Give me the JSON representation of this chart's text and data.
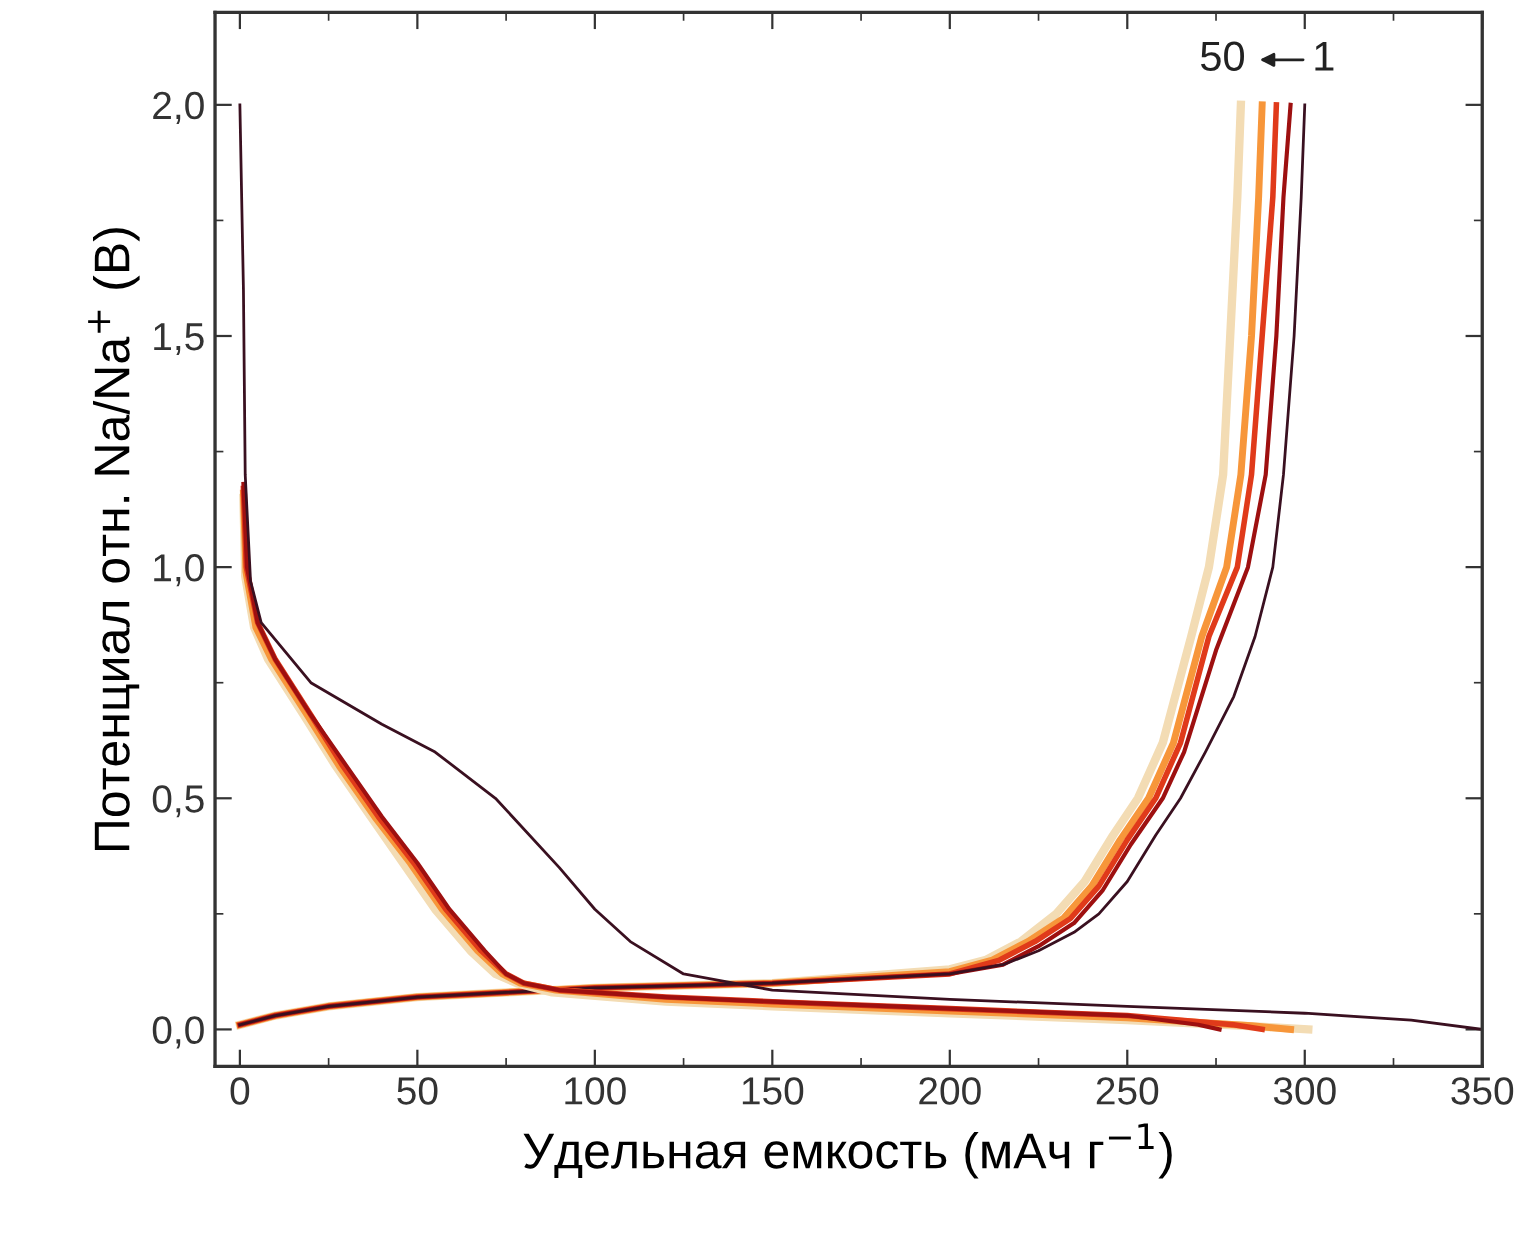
{
  "chart_data": {
    "type": "line",
    "xlabel": "Удельная емкость (мАч г$^{−1}$)",
    "ylabel": "Потенциал отн. Na/Na$^{+}$ (В)",
    "xlim": [
      -7,
      350
    ],
    "ylim": [
      -0.08,
      2.2
    ],
    "xticks": [
      0,
      50,
      100,
      150,
      200,
      250,
      300,
      350
    ],
    "yticks": [
      {
        "value": 0,
        "label": "0,0"
      },
      {
        "value": 0.5,
        "label": "0,5"
      },
      {
        "value": 1.0,
        "label": "1,0"
      },
      {
        "value": 1.5,
        "label": "1,5"
      },
      {
        "value": 2.0,
        "label": "2,0"
      }
    ],
    "grid": false,
    "legend": false,
    "marker": "none",
    "line_style": "solid",
    "annotations": [
      "50",
      "1"
    ],
    "series": [
      {
        "color": "#f3dcb4",
        "x": [
          0,
          10,
          25,
          50,
          75,
          100,
          150,
          200,
          210,
          220,
          230,
          238,
          246,
          253,
          260,
          268,
          273,
          277,
          279,
          281,
          282
        ],
        "values": [
          0.01,
          0.03,
          0.05,
          0.07,
          0.08,
          0.09,
          0.1,
          0.13,
          0.15,
          0.19,
          0.25,
          0.32,
          0.42,
          0.5,
          0.62,
          0.85,
          1.0,
          1.2,
          1.5,
          1.8,
          2.0
        ]
      },
      {
        "color": "#f7963a",
        "x": [
          0,
          10,
          25,
          50,
          75,
          100,
          150,
          200,
          212,
          222,
          232,
          240,
          248,
          256,
          263,
          271,
          278,
          282,
          285,
          287,
          288
        ],
        "values": [
          0.01,
          0.03,
          0.05,
          0.07,
          0.08,
          0.09,
          0.1,
          0.125,
          0.15,
          0.19,
          0.24,
          0.31,
          0.41,
          0.5,
          0.62,
          0.85,
          1.0,
          1.2,
          1.5,
          1.8,
          2.0
        ]
      },
      {
        "color": "#e03a1a",
        "x": [
          0,
          10,
          25,
          50,
          75,
          100,
          150,
          200,
          214,
          224,
          234,
          242,
          250,
          258,
          265,
          273,
          281,
          285,
          288,
          291,
          292
        ],
        "values": [
          0.01,
          0.03,
          0.05,
          0.07,
          0.08,
          0.09,
          0.1,
          0.12,
          0.15,
          0.19,
          0.24,
          0.31,
          0.41,
          0.5,
          0.62,
          0.85,
          1.0,
          1.2,
          1.5,
          1.8,
          2.0
        ]
      },
      {
        "color": "#9e1010",
        "x": [
          0,
          10,
          25,
          50,
          75,
          100,
          150,
          200,
          215,
          225,
          235,
          243,
          251,
          260,
          266,
          275,
          284,
          289,
          292,
          294,
          296
        ],
        "values": [
          0.01,
          0.03,
          0.05,
          0.07,
          0.08,
          0.09,
          0.1,
          0.12,
          0.14,
          0.18,
          0.23,
          0.3,
          0.4,
          0.5,
          0.6,
          0.82,
          1.0,
          1.2,
          1.5,
          1.8,
          2.0
        ]
      },
      {
        "color": "#3a1020",
        "x": [
          0,
          10,
          25,
          50,
          75,
          100,
          150,
          200,
          215,
          225,
          235,
          242,
          250,
          258,
          265,
          272,
          280,
          286,
          291,
          294,
          297,
          299,
          300
        ],
        "values": [
          0.01,
          0.03,
          0.05,
          0.07,
          0.08,
          0.09,
          0.1,
          0.12,
          0.14,
          0.17,
          0.21,
          0.25,
          0.32,
          0.42,
          0.5,
          0.6,
          0.72,
          0.85,
          1.0,
          1.2,
          1.5,
          1.8,
          2.0
        ]
      },
      {
        "color": "#f3dcb4",
        "x": [
          1,
          1.5,
          4,
          8,
          18,
          27,
          36,
          46,
          55,
          65,
          72,
          78,
          88,
          120,
          150,
          200,
          250,
          290,
          301
        ],
        "values": [
          1.15,
          0.98,
          0.87,
          0.8,
          0.68,
          0.57,
          0.47,
          0.36,
          0.26,
          0.17,
          0.12,
          0.1,
          0.08,
          0.06,
          0.05,
          0.035,
          0.02,
          0.005,
          0.0
        ]
      },
      {
        "color": "#f7963a",
        "x": [
          1,
          1.7,
          4.5,
          9,
          19,
          28,
          38,
          48,
          57,
          67,
          74,
          79,
          89,
          120,
          150,
          200,
          250,
          285,
          296
        ],
        "values": [
          1.16,
          0.99,
          0.87,
          0.8,
          0.68,
          0.57,
          0.46,
          0.36,
          0.26,
          0.17,
          0.12,
          0.1,
          0.085,
          0.065,
          0.055,
          0.04,
          0.025,
          0.008,
          0.0
        ]
      },
      {
        "color": "#e03a1a",
        "x": [
          1,
          1.8,
          5,
          10,
          20,
          29,
          39,
          49,
          58,
          68,
          75,
          80,
          90,
          120,
          150,
          200,
          250,
          280,
          288
        ],
        "values": [
          1.17,
          1.0,
          0.88,
          0.8,
          0.68,
          0.57,
          0.46,
          0.36,
          0.26,
          0.17,
          0.12,
          0.1,
          0.085,
          0.07,
          0.06,
          0.045,
          0.03,
          0.01,
          0.0
        ]
      },
      {
        "color": "#9e1010",
        "x": [
          1,
          2,
          5,
          10,
          20,
          30,
          40,
          50,
          59,
          69,
          75,
          80,
          90,
          120,
          150,
          200,
          250,
          270,
          276
        ],
        "values": [
          1.18,
          1.0,
          0.88,
          0.8,
          0.68,
          0.57,
          0.46,
          0.36,
          0.26,
          0.17,
          0.12,
          0.1,
          0.085,
          0.07,
          0.06,
          0.045,
          0.03,
          0.01,
          0.0
        ]
      },
      {
        "color": "#3a1020",
        "x": [
          0,
          1,
          1.5,
          3,
          6,
          20,
          40,
          55,
          72,
          90,
          100,
          110,
          125,
          150,
          200,
          250,
          300,
          330,
          350
        ],
        "values": [
          2.0,
          1.6,
          1.2,
          0.97,
          0.88,
          0.75,
          0.66,
          0.6,
          0.5,
          0.35,
          0.26,
          0.19,
          0.12,
          0.085,
          0.065,
          0.05,
          0.035,
          0.02,
          0.0
        ]
      }
    ]
  }
}
